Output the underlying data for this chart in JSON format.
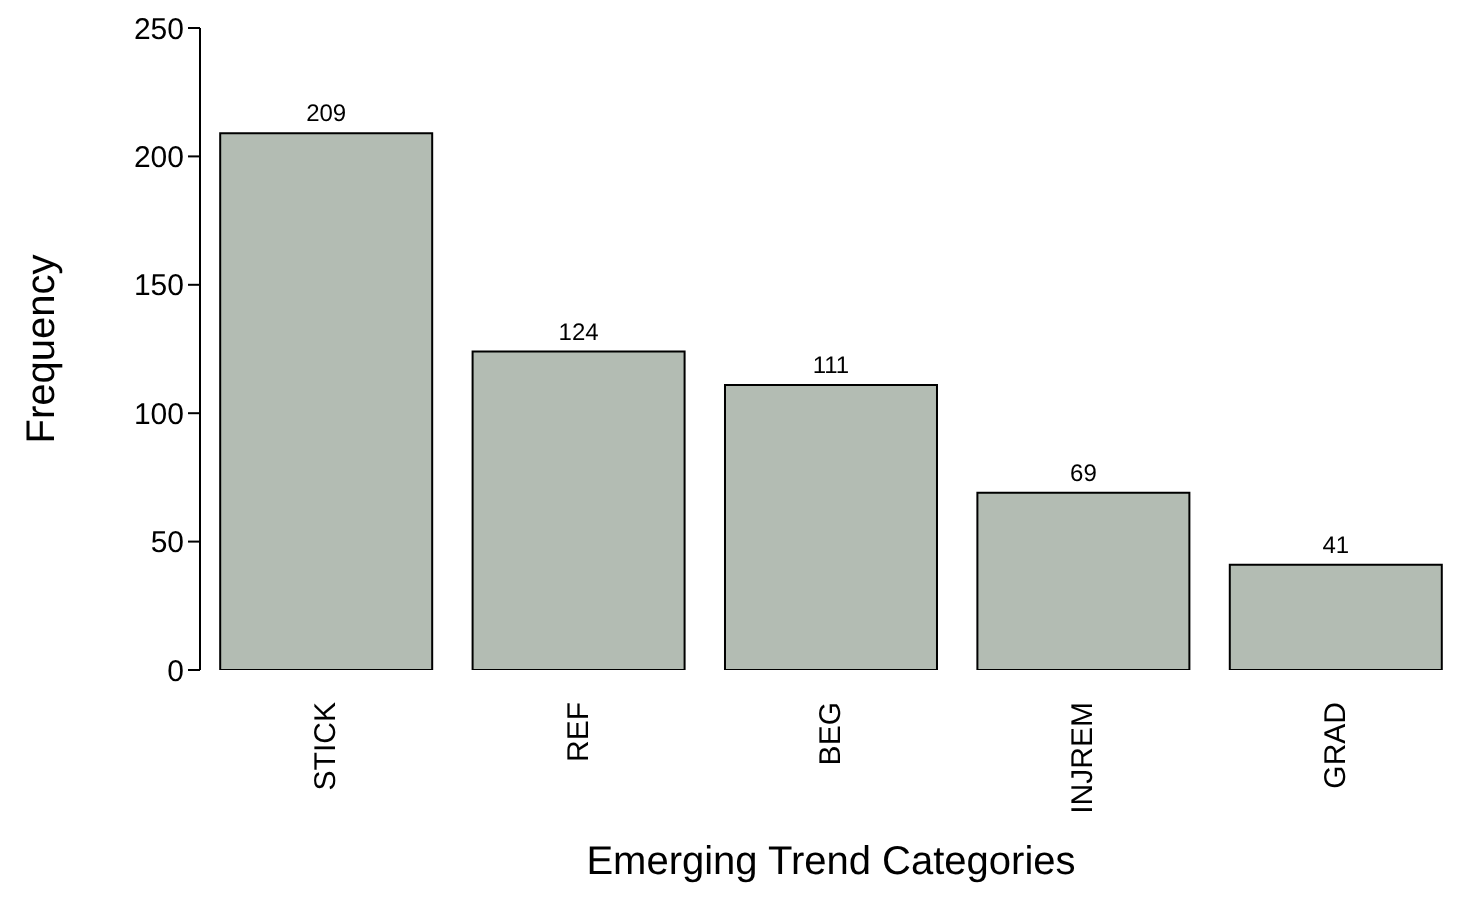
{
  "chart_data": {
    "type": "bar",
    "xlabel": "Emerging Trend Categories",
    "ylabel": "Frequency",
    "categories": [
      "STICK",
      "REF",
      "BEG",
      "INJREM",
      "GRAD"
    ],
    "values": [
      209,
      124,
      111,
      69,
      41
    ],
    "color": "#b3bcb3",
    "ylim": [
      0,
      250
    ],
    "yticks": [
      0,
      50,
      100,
      150,
      200,
      250
    ],
    "data_labels": true,
    "grid": false,
    "legend": false
  }
}
